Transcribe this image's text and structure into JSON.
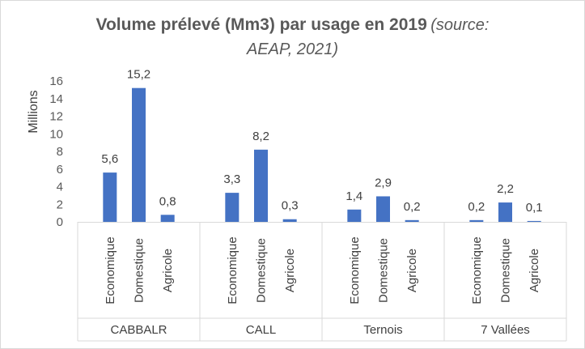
{
  "title": {
    "main": "Volume prélevé (Mm3) par usage en 2019",
    "source_line1": "(source:",
    "source_line2": "AEAP, 2021)"
  },
  "chart_data": {
    "type": "bar",
    "ylabel": "Millions",
    "ylim": [
      0,
      16
    ],
    "yticks": [
      "0",
      "2",
      "4",
      "6",
      "8",
      "10",
      "12",
      "14",
      "16"
    ],
    "grid": false,
    "legend": "none",
    "bar_color": "#4472c4",
    "groups": [
      {
        "name": "CABBALR",
        "categories": [
          "Economique",
          "Domestique",
          "Agricole"
        ],
        "values": [
          5.6,
          15.2,
          0.8
        ],
        "labels": [
          "5,6",
          "15,2",
          "0,8"
        ]
      },
      {
        "name": "CALL",
        "categories": [
          "Economique",
          "Domestique",
          "Agricole"
        ],
        "values": [
          3.3,
          8.2,
          0.3
        ],
        "labels": [
          "3,3",
          "8,2",
          "0,3"
        ]
      },
      {
        "name": "Ternois",
        "categories": [
          "Economique",
          "Domestique",
          "Agricole"
        ],
        "values": [
          1.4,
          2.9,
          0.2
        ],
        "labels": [
          "1,4",
          "2,9",
          "0,2"
        ]
      },
      {
        "name": "7 Vallées",
        "categories": [
          "Economique",
          "Domestique",
          "Agricole"
        ],
        "values": [
          0.2,
          2.2,
          0.1
        ],
        "labels": [
          "0,2",
          "2,2",
          "0,1"
        ]
      }
    ]
  }
}
